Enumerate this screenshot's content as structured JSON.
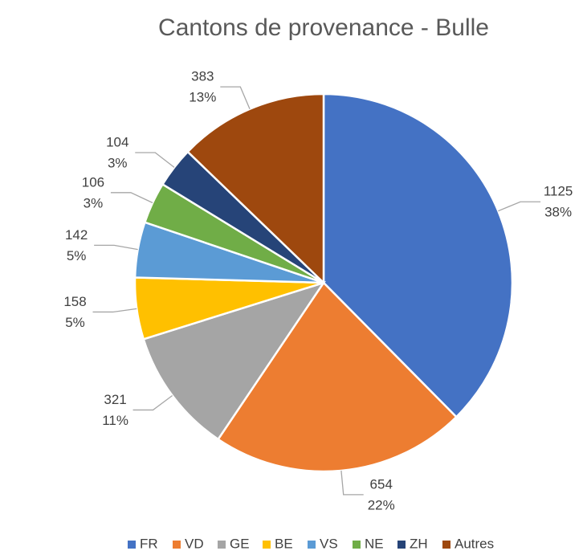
{
  "chart_data": {
    "type": "pie",
    "title": "Cantons de provenance - Bulle",
    "categories": [
      "FR",
      "VD",
      "GE",
      "BE",
      "VS",
      "NE",
      "ZH",
      "Autres"
    ],
    "values": [
      1125,
      654,
      321,
      158,
      142,
      106,
      104,
      383
    ],
    "percent_labels": [
      "38%",
      "22%",
      "11%",
      "5%",
      "5%",
      "3%",
      "3%",
      "13%"
    ],
    "colors": [
      "#4472c4",
      "#ed7d31",
      "#a5a5a5",
      "#ffc000",
      "#5b9bd5",
      "#70ad47",
      "#264478",
      "#9e480e"
    ],
    "legend": "bottom"
  }
}
